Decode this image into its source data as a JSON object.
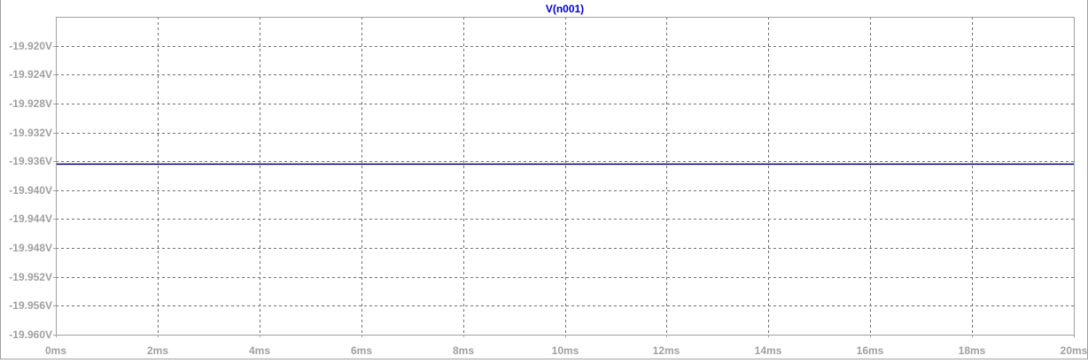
{
  "chart_data": {
    "type": "line",
    "title": "V(n001)",
    "xlabel": "",
    "ylabel": "",
    "x_ticks": [
      "0ms",
      "2ms",
      "4ms",
      "6ms",
      "8ms",
      "10ms",
      "12ms",
      "14ms",
      "16ms",
      "18ms",
      "20ms"
    ],
    "y_ticks": [
      "-19.920V",
      "-19.924V",
      "-19.928V",
      "-19.932V",
      "-19.936V",
      "-19.940V",
      "-19.944V",
      "-19.948V",
      "-19.952V",
      "-19.956V",
      "-19.960V"
    ],
    "xlim": [
      0,
      20
    ],
    "x_unit": "ms",
    "ylim": [
      -19.96,
      -19.916
    ],
    "y_unit": "V",
    "grid": true,
    "grid_style": "dashed",
    "series": [
      {
        "name": "V(n001)",
        "color": "#000080",
        "x": [
          0,
          20
        ],
        "y": [
          -19.9364,
          -19.9364
        ]
      }
    ],
    "colors": {
      "axis_text": "#a0a0a0",
      "grid": "#707070",
      "frame": "#a0a0a0",
      "title": "#0000c8",
      "trace": "#000080"
    }
  }
}
